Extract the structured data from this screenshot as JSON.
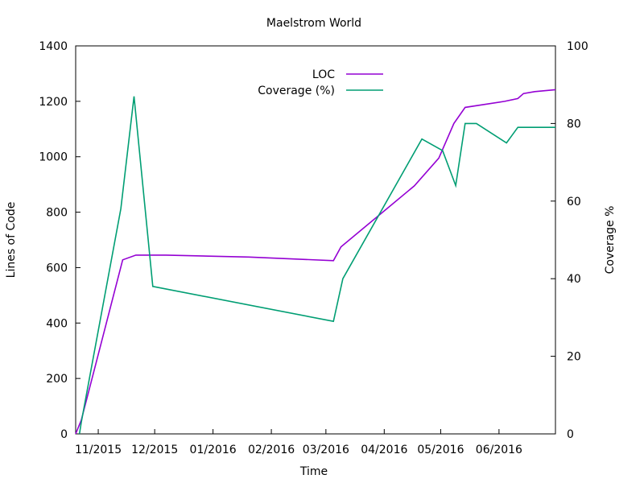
{
  "chart_data": {
    "type": "line",
    "title": "Maelstrom World",
    "xlabel": "Time",
    "ylabel": "Lines of Code",
    "y2label": "Coverage %",
    "xlim": [
      "2015-10-20",
      "2016-07-01"
    ],
    "ylim": [
      0,
      1400
    ],
    "y2lim": [
      0,
      100
    ],
    "x_ticks": [
      {
        "date": "2015-11-01",
        "label": "11/2015"
      },
      {
        "date": "2015-12-01",
        "label": "12/2015"
      },
      {
        "date": "2016-01-01",
        "label": "01/2016"
      },
      {
        "date": "2016-02-01",
        "label": "02/2016"
      },
      {
        "date": "2016-03-01",
        "label": "03/2016"
      },
      {
        "date": "2016-04-01",
        "label": "04/2016"
      },
      {
        "date": "2016-05-01",
        "label": "05/2016"
      },
      {
        "date": "2016-06-01",
        "label": "06/2016"
      }
    ],
    "y_ticks": [
      0,
      200,
      400,
      600,
      800,
      1000,
      1200,
      1400
    ],
    "y2_ticks": [
      0,
      20,
      40,
      60,
      80,
      100
    ],
    "grid": false,
    "legend": "top-center",
    "series": [
      {
        "name": "LOC",
        "axis": "left",
        "color": "#9400d3",
        "points": [
          [
            "2015-10-20",
            0
          ],
          [
            "2015-10-23",
            50
          ],
          [
            "2015-11-14",
            628
          ],
          [
            "2015-11-21",
            645
          ],
          [
            "2015-12-07",
            645
          ],
          [
            "2016-01-20",
            638
          ],
          [
            "2016-03-05",
            625
          ],
          [
            "2016-03-09",
            675
          ],
          [
            "2016-04-17",
            895
          ],
          [
            "2016-04-30",
            995
          ],
          [
            "2016-05-08",
            1120
          ],
          [
            "2016-05-14",
            1178
          ],
          [
            "2016-06-04",
            1200
          ],
          [
            "2016-06-11",
            1210
          ],
          [
            "2016-06-14",
            1228
          ],
          [
            "2016-06-20",
            1235
          ],
          [
            "2016-07-01",
            1242
          ]
        ]
      },
      {
        "name": "Coverage (%)",
        "axis": "right",
        "color": "#009e73",
        "points": [
          [
            "2015-10-22",
            0
          ],
          [
            "2015-10-23",
            3
          ],
          [
            "2015-11-13",
            58
          ],
          [
            "2015-11-20",
            87
          ],
          [
            "2015-11-30",
            38
          ],
          [
            "2016-03-05",
            29
          ],
          [
            "2016-03-10",
            40
          ],
          [
            "2016-04-21",
            76
          ],
          [
            "2016-05-02",
            73
          ],
          [
            "2016-05-09",
            64
          ],
          [
            "2016-05-14",
            80
          ],
          [
            "2016-05-20",
            80
          ],
          [
            "2016-06-05",
            75
          ],
          [
            "2016-06-11",
            79
          ],
          [
            "2016-07-01",
            79
          ]
        ]
      }
    ]
  }
}
